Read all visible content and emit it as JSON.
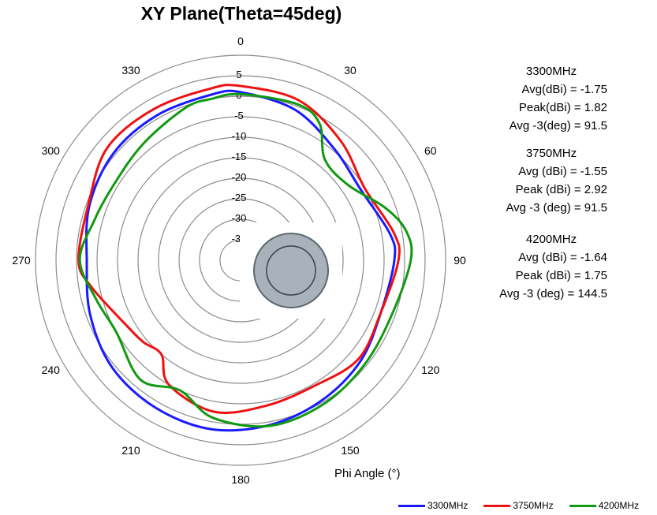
{
  "chart_data": {
    "type": "polar-line",
    "title": "XY Plane(Theta=45deg)",
    "xlabel": "Phi Angle (°)",
    "angle_ticks": [
      0,
      30,
      60,
      90,
      120,
      150,
      180,
      210,
      240,
      270,
      300,
      330
    ],
    "radial_ticks": [
      5,
      0,
      -5,
      -10,
      -15,
      -20,
      -25,
      -30,
      -35
    ],
    "rlim": [
      -40,
      10
    ],
    "series": [
      {
        "name": "3300MHz",
        "color": "#1a1aff",
        "points": [
          [
            0,
            1.0
          ],
          [
            20,
            -1.0
          ],
          [
            40,
            -4.5
          ],
          [
            60,
            -6.0
          ],
          [
            80,
            -3.0
          ],
          [
            90,
            -2.5
          ],
          [
            110,
            -3.5
          ],
          [
            130,
            -1.8
          ],
          [
            150,
            -0.5
          ],
          [
            170,
            0.8
          ],
          [
            190,
            1.8
          ],
          [
            210,
            1.5
          ],
          [
            230,
            0.8
          ],
          [
            250,
            -1.0
          ],
          [
            270,
            -2.5
          ],
          [
            290,
            -0.8
          ],
          [
            310,
            0.5
          ],
          [
            330,
            0.8
          ],
          [
            350,
            1.0
          ]
        ]
      },
      {
        "name": "3750MHz",
        "color": "#ee1111",
        "points": [
          [
            0,
            2.5
          ],
          [
            20,
            1.5
          ],
          [
            40,
            -2.0
          ],
          [
            60,
            -5.0
          ],
          [
            80,
            -2.0
          ],
          [
            90,
            -1.5
          ],
          [
            110,
            -3.5
          ],
          [
            130,
            -2.5
          ],
          [
            150,
            -4.5
          ],
          [
            170,
            -4.0
          ],
          [
            190,
            -2.5
          ],
          [
            210,
            -5.0
          ],
          [
            220,
            -10.0
          ],
          [
            230,
            -9.0
          ],
          [
            240,
            -8.0
          ],
          [
            260,
            -3.0
          ],
          [
            270,
            -0.5
          ],
          [
            290,
            -0.5
          ],
          [
            310,
            2.5
          ],
          [
            330,
            2.5
          ],
          [
            350,
            2.5
          ]
        ]
      },
      {
        "name": "4200MHz",
        "color": "#119911",
        "points": [
          [
            0,
            0.5
          ],
          [
            20,
            0.5
          ],
          [
            30,
            -1.5
          ],
          [
            40,
            -8.0
          ],
          [
            55,
            -8.0
          ],
          [
            70,
            -2.5
          ],
          [
            80,
            1.0
          ],
          [
            90,
            1.5
          ],
          [
            110,
            -0.8
          ],
          [
            130,
            -0.5
          ],
          [
            150,
            0.5
          ],
          [
            170,
            1.0
          ],
          [
            190,
            -1.0
          ],
          [
            205,
            -5.0
          ],
          [
            220,
            -2.0
          ],
          [
            240,
            -5.0
          ],
          [
            255,
            -3.5
          ],
          [
            270,
            -0.8
          ],
          [
            285,
            -3.0
          ],
          [
            300,
            -4.0
          ],
          [
            320,
            -3.0
          ],
          [
            340,
            -0.5
          ],
          [
            350,
            0.0
          ]
        ]
      }
    ]
  },
  "stats": [
    {
      "header": "3300MHz",
      "rows": [
        "Avg(dBi) = -1.75",
        "Peak(dBi) = 1.82",
        "Avg -3(deg) = 91.5"
      ]
    },
    {
      "header": "3750MHz",
      "rows": [
        "Avg (dBi) =  -1.55",
        "Peak (dBi) =  2.92",
        "Avg -3 (deg) =  91.5"
      ]
    },
    {
      "header": "4200MHz",
      "rows": [
        "Avg (dBi) =  -1.64",
        "Peak (dBi) = 1.75",
        "Avg -3 (deg) = 144.5"
      ]
    }
  ],
  "legend": [
    {
      "label": "3300MHz",
      "color": "#1a1aff"
    },
    {
      "label": "3750MHz",
      "color": "#ee1111"
    },
    {
      "label": "4200MHz",
      "color": "#119911"
    }
  ]
}
